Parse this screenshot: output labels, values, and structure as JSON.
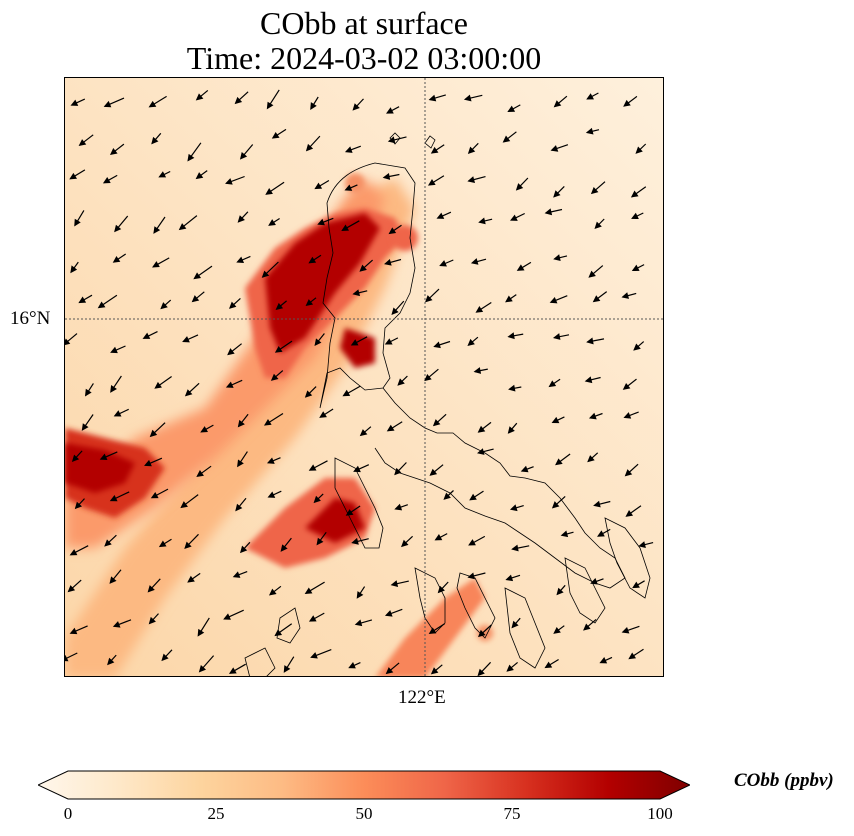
{
  "title": {
    "line1": "CObb at surface",
    "line2": "Time: 2024-03-02 03:00:00"
  },
  "map": {
    "gridline_lat_label": "16°N",
    "gridline_lon_label": "122°E"
  },
  "colorbar": {
    "label": "CObb (ppbv)",
    "ticks": [
      "0",
      "25",
      "50",
      "75",
      "100"
    ],
    "min": 0,
    "max": 100,
    "colormap": [
      "#fff7ec",
      "#fee8c8",
      "#fdd49e",
      "#fdbb84",
      "#fc8d59",
      "#ef6548",
      "#d7301f",
      "#b30000",
      "#7f0000"
    ]
  }
}
